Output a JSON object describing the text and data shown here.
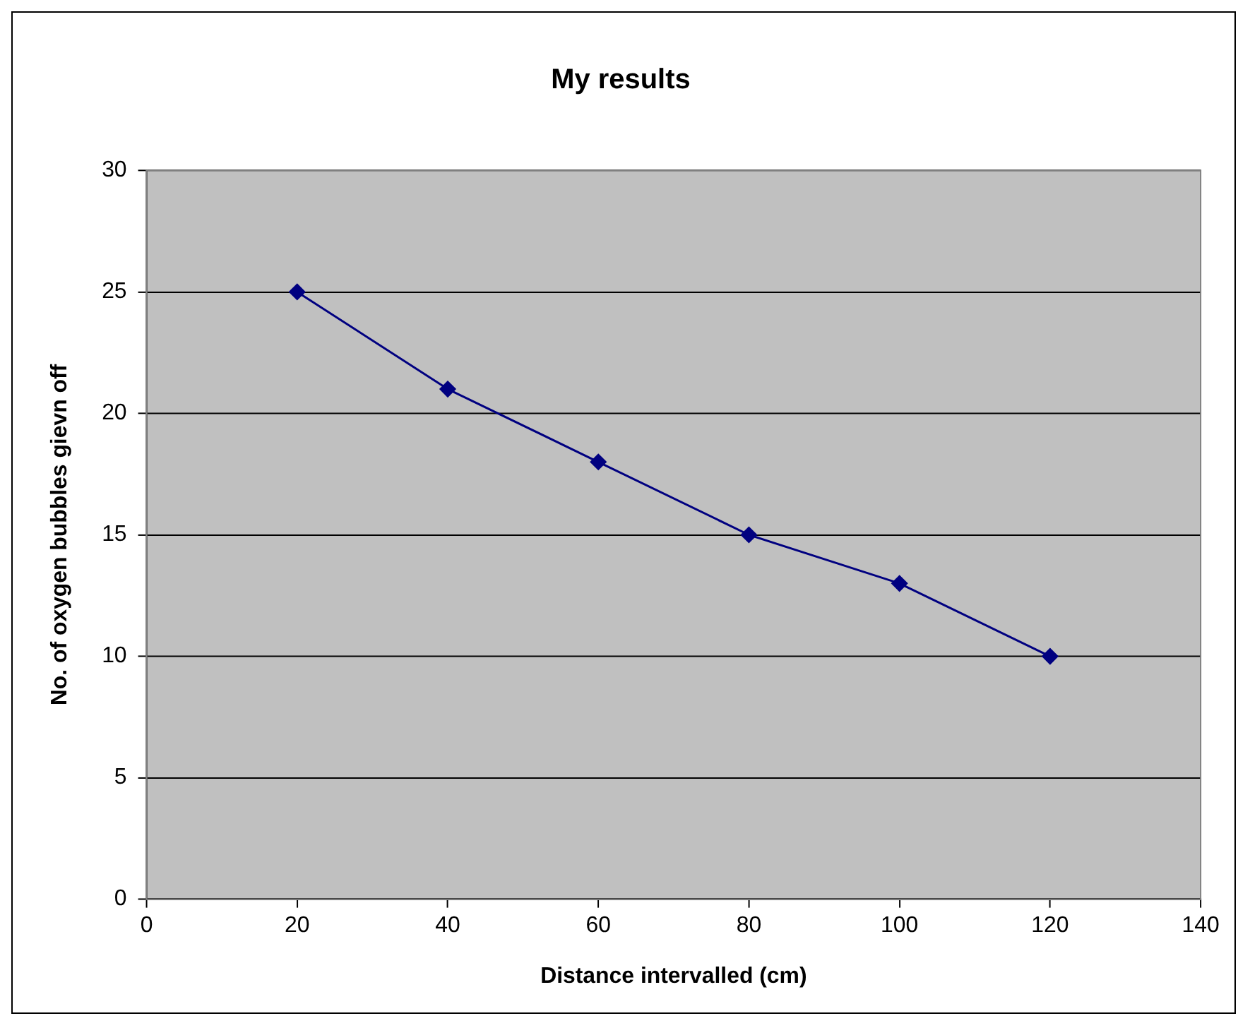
{
  "chart_data": {
    "type": "line",
    "title": "My results",
    "xlabel": "Distance intervalled (cm)",
    "ylabel": "No. of oxygen bubbles gievn off",
    "x": [
      20,
      40,
      60,
      80,
      100,
      120
    ],
    "series": [
      {
        "color": "#000080",
        "values": [
          25,
          21,
          18,
          15,
          13,
          10
        ]
      }
    ],
    "xlim": [
      0,
      140
    ],
    "xticks": [
      0,
      20,
      40,
      60,
      80,
      100,
      120,
      140
    ],
    "ylim": [
      0,
      30
    ],
    "yticks": [
      0,
      5,
      10,
      15,
      20,
      25,
      30
    ],
    "grid": "y",
    "legend": false,
    "marker": "diamond",
    "line_style": "solid"
  }
}
